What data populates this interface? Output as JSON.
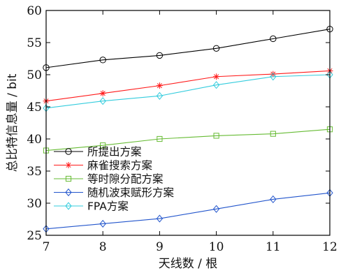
{
  "chart_data": {
    "type": "line",
    "xlabel": "天线数 / 根",
    "ylabel": "总比特信息量 / bit",
    "x": [
      7,
      8,
      9,
      10,
      11,
      12
    ],
    "xlim": [
      7,
      12
    ],
    "ylim": [
      25,
      60
    ],
    "xticks": [
      "7",
      "8",
      "9",
      "10",
      "11",
      "12"
    ],
    "yticks": [
      "25",
      "30",
      "35",
      "40",
      "45",
      "50",
      "55",
      "60"
    ],
    "grid": false,
    "legend_position": "lower-left",
    "series": [
      {
        "name": "所提出方案",
        "values": [
          51.1,
          52.3,
          53.0,
          54.1,
          55.6,
          57.1
        ],
        "color": "#000000",
        "marker": "circle"
      },
      {
        "name": "麻雀搜索方案",
        "values": [
          45.9,
          47.1,
          48.3,
          49.7,
          50.1,
          50.6
        ],
        "color": "#ff1a1a",
        "marker": "asterisk"
      },
      {
        "name": "等时隙分配方案",
        "values": [
          38.2,
          39.0,
          40.0,
          40.5,
          40.8,
          41.5
        ],
        "color": "#66bb33",
        "marker": "square"
      },
      {
        "name": "随机波束赋形方案",
        "values": [
          26.0,
          26.8,
          27.6,
          29.1,
          30.6,
          31.6
        ],
        "color": "#2255cc",
        "marker": "diamond"
      },
      {
        "name": "FPA方案",
        "values": [
          44.8,
          45.9,
          46.7,
          48.4,
          49.7,
          50.0
        ],
        "color": "#33ccdd",
        "marker": "diamond"
      }
    ]
  }
}
